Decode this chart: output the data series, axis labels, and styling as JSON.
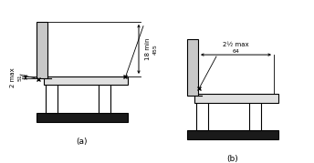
{
  "fig_width": 3.44,
  "fig_height": 1.79,
  "dpi": 100,
  "background": "#ffffff",
  "lc": "#000000",
  "fc_gray": "#c8c8c8",
  "fc_light": "#e0e0e0",
  "fc_dark": "#1a1a1a",
  "label_a": "(a)",
  "label_b": "(b)",
  "dim_2max": "2 max",
  "dim_51": "51",
  "dim_18min": "18 min",
  "dim_455": "455",
  "dim_2half_max": "2½ max",
  "dim_64": "64"
}
